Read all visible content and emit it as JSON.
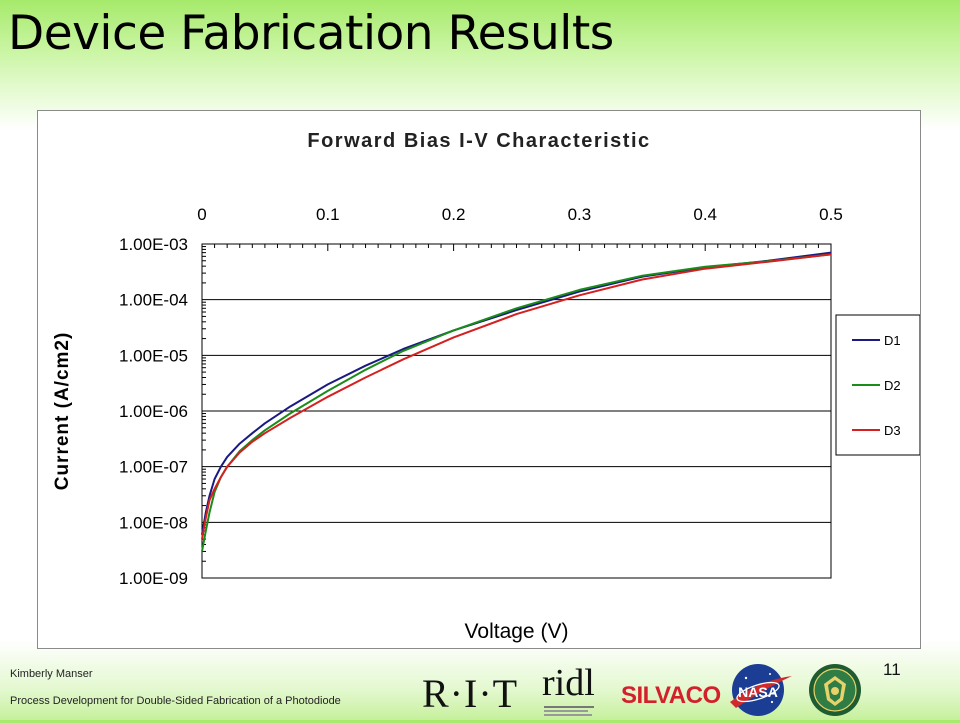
{
  "slide": {
    "title": "Device Fabrication Results",
    "author": "Kimberly Manser",
    "subtitle": "Process Development for Double-Sided Fabrication of a Photodiode",
    "page_number": "11"
  },
  "logos": {
    "rit": "R·I·T",
    "ridl": "ridl",
    "silvaco": "SILVACO",
    "nasa": "NASA"
  },
  "colors": {
    "title_bar": "#a6ea6b",
    "D1": "#1a1a80",
    "D2": "#1a8c1a",
    "D3": "#d42020"
  },
  "chart_data": {
    "type": "line",
    "title": "Forward Bias I-V Characteristic",
    "xlabel": "Voltage (V)",
    "ylabel": "Current (A/cm2)",
    "xlim": [
      0,
      0.5
    ],
    "ylim": [
      1e-09,
      0.001
    ],
    "yscale": "log",
    "x_axis_position": "top",
    "x_ticks": [
      "0",
      "0.1",
      "0.2",
      "0.3",
      "0.4",
      "0.5"
    ],
    "y_ticks": [
      "1.00E-03",
      "1.00E-04",
      "1.00E-05",
      "1.00E-06",
      "1.00E-07",
      "1.00E-08",
      "1.00E-09"
    ],
    "grid": "horizontal",
    "legend_position": "right",
    "series": [
      {
        "name": "D1",
        "color": "#1a1a80",
        "x": [
          0,
          0.003,
          0.006,
          0.01,
          0.015,
          0.02,
          0.03,
          0.04,
          0.05,
          0.07,
          0.1,
          0.13,
          0.16,
          0.2,
          0.25,
          0.3,
          0.35,
          0.4,
          0.45,
          0.5
        ],
        "y": [
          6e-09,
          1.5e-08,
          3e-08,
          6e-08,
          1e-07,
          1.5e-07,
          2.6e-07,
          4e-07,
          6e-07,
          1.2e-06,
          3e-06,
          6.5e-06,
          1.3e-05,
          2.8e-05,
          6.5e-05,
          0.00014,
          0.00026,
          0.00038,
          0.0005,
          0.0007
        ]
      },
      {
        "name": "D2",
        "color": "#1a8c1a",
        "x": [
          0,
          0.003,
          0.006,
          0.01,
          0.015,
          0.02,
          0.03,
          0.04,
          0.05,
          0.07,
          0.1,
          0.13,
          0.16,
          0.2,
          0.25,
          0.3,
          0.35,
          0.4,
          0.45,
          0.5
        ],
        "y": [
          3e-09,
          7e-09,
          1.5e-08,
          3.5e-08,
          6.5e-08,
          1e-07,
          1.9e-07,
          3e-07,
          4.5e-07,
          9e-07,
          2.3e-06,
          5.5e-06,
          1.2e-05,
          2.8e-05,
          7e-05,
          0.00015,
          0.00027,
          0.00039,
          0.00049,
          0.00065
        ]
      },
      {
        "name": "D3",
        "color": "#d42020",
        "x": [
          0,
          0.003,
          0.006,
          0.01,
          0.015,
          0.02,
          0.03,
          0.04,
          0.05,
          0.07,
          0.1,
          0.13,
          0.16,
          0.2,
          0.25,
          0.3,
          0.35,
          0.4,
          0.45,
          0.5
        ],
        "y": [
          5e-09,
          1.2e-08,
          2.5e-08,
          4e-08,
          6.5e-08,
          1e-07,
          1.8e-07,
          2.8e-07,
          4e-07,
          7.5e-07,
          1.8e-06,
          4e-06,
          8.5e-06,
          2.1e-05,
          5.5e-05,
          0.00012,
          0.00023,
          0.00036,
          0.00048,
          0.00065
        ]
      }
    ]
  }
}
